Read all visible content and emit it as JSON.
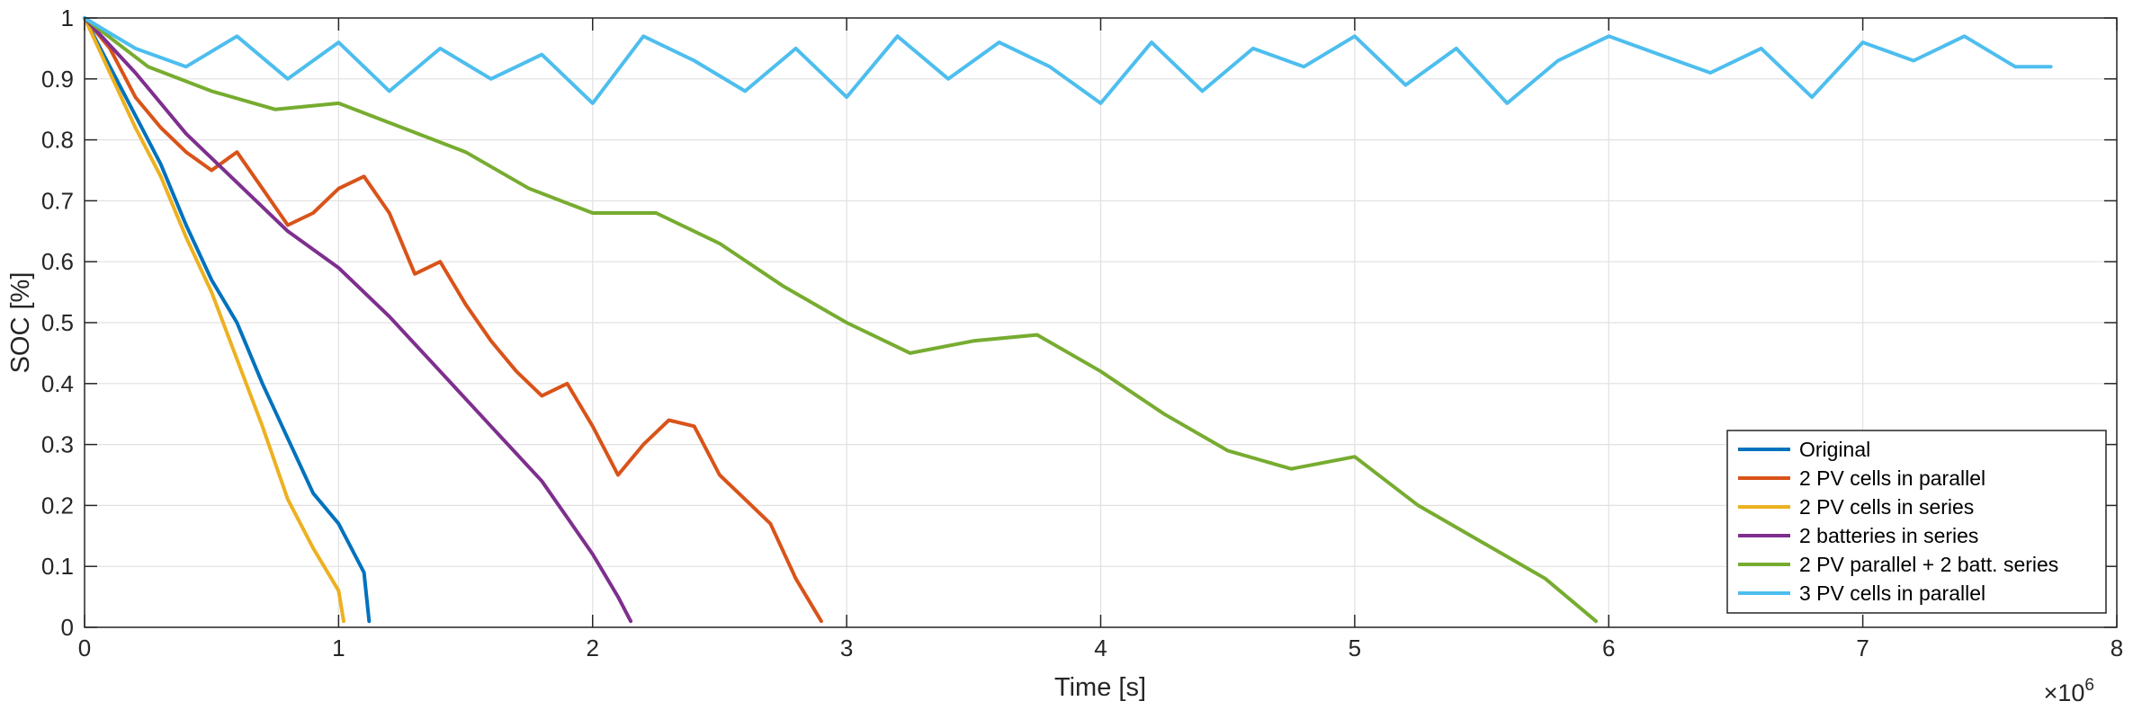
{
  "chart_data": {
    "type": "line",
    "xlabel": "Time [s]",
    "ylabel": "SOC [%]",
    "xlim": [
      0,
      8
    ],
    "ylim": [
      0,
      1
    ],
    "x_exponent_label": {
      "base": "×10",
      "power": "6"
    },
    "xticks": [
      0,
      1,
      2,
      3,
      4,
      5,
      6,
      7,
      8
    ],
    "xtick_labels": [
      "0",
      "1",
      "2",
      "3",
      "4",
      "5",
      "6",
      "7",
      "8"
    ],
    "yticks": [
      0,
      0.1,
      0.2,
      0.3,
      0.4,
      0.5,
      0.6,
      0.7,
      0.8,
      0.9,
      1
    ],
    "ytick_labels": [
      "0",
      "0.1",
      "0.2",
      "0.3",
      "0.4",
      "0.5",
      "0.6",
      "0.7",
      "0.8",
      "0.9",
      "1"
    ],
    "grid": true,
    "legend_position": "bottom-right",
    "series": [
      {
        "name": "Original",
        "color": "#0072BD",
        "x": [
          0,
          0.1,
          0.2,
          0.3,
          0.4,
          0.5,
          0.6,
          0.7,
          0.8,
          0.9,
          1.0,
          1.1,
          1.12
        ],
        "y": [
          1.0,
          0.92,
          0.84,
          0.76,
          0.66,
          0.57,
          0.5,
          0.4,
          0.31,
          0.22,
          0.17,
          0.09,
          0.01
        ]
      },
      {
        "name": "2 PV cells in parallel",
        "color": "#D95319",
        "x": [
          0,
          0.1,
          0.2,
          0.3,
          0.4,
          0.5,
          0.6,
          0.7,
          0.8,
          0.9,
          1.0,
          1.1,
          1.2,
          1.3,
          1.4,
          1.5,
          1.6,
          1.7,
          1.8,
          1.9,
          2.0,
          2.1,
          2.2,
          2.3,
          2.4,
          2.5,
          2.6,
          2.7,
          2.8,
          2.9
        ],
        "y": [
          1.0,
          0.95,
          0.87,
          0.82,
          0.78,
          0.75,
          0.78,
          0.72,
          0.66,
          0.68,
          0.72,
          0.74,
          0.68,
          0.58,
          0.6,
          0.53,
          0.47,
          0.42,
          0.38,
          0.4,
          0.33,
          0.25,
          0.3,
          0.34,
          0.33,
          0.25,
          0.21,
          0.17,
          0.08,
          0.01
        ]
      },
      {
        "name": "2 PV cells in series",
        "color": "#EDB120",
        "x": [
          0,
          0.1,
          0.2,
          0.3,
          0.4,
          0.5,
          0.6,
          0.7,
          0.8,
          0.9,
          1.0,
          1.02
        ],
        "y": [
          1.0,
          0.91,
          0.82,
          0.74,
          0.64,
          0.55,
          0.44,
          0.33,
          0.21,
          0.13,
          0.06,
          0.01
        ]
      },
      {
        "name": "2 batteries in series",
        "color": "#7E2F8E",
        "x": [
          0,
          0.2,
          0.4,
          0.6,
          0.8,
          1.0,
          1.2,
          1.4,
          1.6,
          1.8,
          2.0,
          2.1,
          2.15
        ],
        "y": [
          1.0,
          0.91,
          0.81,
          0.73,
          0.65,
          0.59,
          0.51,
          0.42,
          0.33,
          0.24,
          0.12,
          0.05,
          0.01
        ]
      },
      {
        "name": "2 PV parallel + 2 batt. series",
        "color": "#77AC30",
        "x": [
          0,
          0.25,
          0.5,
          0.75,
          1.0,
          1.25,
          1.5,
          1.75,
          2.0,
          2.25,
          2.5,
          2.75,
          3.0,
          3.25,
          3.5,
          3.75,
          4.0,
          4.25,
          4.5,
          4.75,
          5.0,
          5.25,
          5.5,
          5.75,
          5.95
        ],
        "y": [
          1.0,
          0.92,
          0.88,
          0.85,
          0.86,
          0.82,
          0.78,
          0.72,
          0.68,
          0.68,
          0.63,
          0.56,
          0.5,
          0.45,
          0.47,
          0.48,
          0.42,
          0.35,
          0.29,
          0.26,
          0.28,
          0.2,
          0.14,
          0.08,
          0.01
        ]
      },
      {
        "name": "3 PV cells in parallel",
        "color": "#4DBEEE",
        "x": [
          0,
          0.2,
          0.4,
          0.6,
          0.8,
          1.0,
          1.2,
          1.4,
          1.6,
          1.8,
          2.0,
          2.2,
          2.4,
          2.6,
          2.8,
          3.0,
          3.2,
          3.4,
          3.6,
          3.8,
          4.0,
          4.2,
          4.4,
          4.6,
          4.8,
          5.0,
          5.2,
          5.4,
          5.6,
          5.8,
          6.0,
          6.2,
          6.4,
          6.6,
          6.8,
          7.0,
          7.2,
          7.4,
          7.6,
          7.74
        ],
        "y": [
          1.0,
          0.95,
          0.92,
          0.97,
          0.9,
          0.96,
          0.88,
          0.95,
          0.9,
          0.94,
          0.86,
          0.97,
          0.93,
          0.88,
          0.95,
          0.87,
          0.97,
          0.9,
          0.96,
          0.92,
          0.86,
          0.96,
          0.88,
          0.95,
          0.92,
          0.97,
          0.89,
          0.95,
          0.86,
          0.93,
          0.97,
          0.94,
          0.91,
          0.95,
          0.87,
          0.96,
          0.93,
          0.97,
          0.92,
          0.92
        ]
      }
    ]
  }
}
